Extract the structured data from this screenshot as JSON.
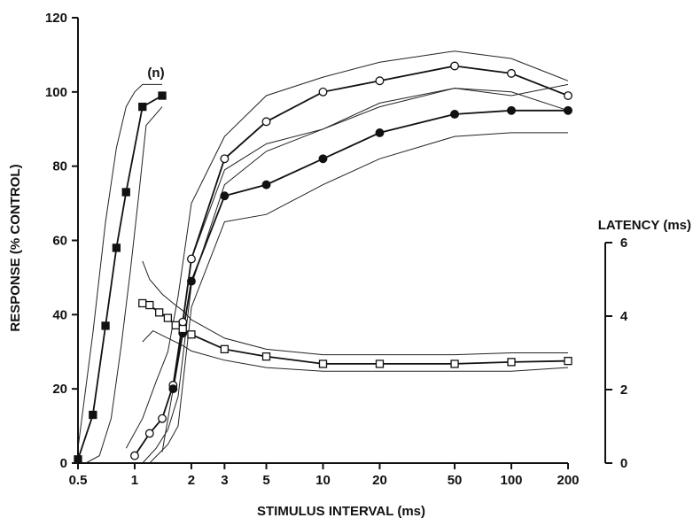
{
  "chart_data": {
    "type": "line",
    "xlabel": "STIMULUS INTERVAL (ms)",
    "ylabel": "RESPONSE (% CONTROL)",
    "y2label": "LATENCY (ms)",
    "x_scale": "log",
    "xlim": [
      0.5,
      200
    ],
    "ylim": [
      0,
      120
    ],
    "y2lim": [
      0,
      6
    ],
    "x_ticks": [
      0.5,
      1,
      2,
      3,
      5,
      10,
      20,
      50,
      100,
      200
    ],
    "x_tick_labels": [
      "0.5",
      "1",
      "2",
      "3",
      "5",
      "10",
      "20",
      "50",
      "100",
      "200"
    ],
    "y_ticks": [
      0,
      20,
      40,
      60,
      80,
      100,
      120
    ],
    "y_tick_labels": [
      "0",
      "20",
      "40",
      "60",
      "80",
      "100",
      "120"
    ],
    "y2_ticks": [
      0,
      2,
      4,
      6
    ],
    "y2_tick_labels": [
      "0",
      "2",
      "4",
      "6"
    ],
    "grid": false,
    "annotations": [
      {
        "text": "(n)",
        "x": 1.15,
        "y": 104
      }
    ],
    "series": [
      {
        "marker": "filled-square",
        "axis": "left",
        "x": [
          0.5,
          0.6,
          0.7,
          0.8,
          0.9,
          1.1,
          1.4
        ],
        "y": [
          1,
          13,
          37,
          58,
          73,
          96,
          99
        ],
        "band_upper_x": [
          0.5,
          0.6,
          0.7,
          0.8,
          0.9,
          1.0,
          1.1,
          1.4
        ],
        "band_upper": [
          4,
          35,
          65,
          85,
          96,
          100,
          102,
          102
        ],
        "band_lower_x": [
          0.55,
          0.65,
          0.75,
          0.85,
          0.95,
          1.05,
          1.15,
          1.4
        ],
        "band_lower": [
          0,
          2,
          12,
          32,
          52,
          72,
          91,
          96
        ]
      },
      {
        "marker": "open-circle",
        "axis": "left",
        "x": [
          1,
          1.2,
          1.4,
          1.6,
          1.8,
          2,
          3,
          5,
          10,
          20,
          50,
          100,
          200
        ],
        "y": [
          2,
          8,
          12,
          21,
          38,
          55,
          82,
          92,
          100,
          103,
          107,
          105,
          99
        ],
        "band_upper_x": [
          0.9,
          1.1,
          1.3,
          1.5,
          1.7,
          2.0,
          3,
          5,
          10,
          20,
          50,
          100,
          200
        ],
        "band_upper": [
          4,
          12,
          22,
          30,
          45,
          70,
          88,
          99,
          104,
          108,
          111,
          109,
          103
        ],
        "band_lower_x": [
          1.1,
          1.3,
          1.5,
          1.7,
          2.0,
          3,
          5,
          10,
          20,
          50,
          100,
          200
        ],
        "band_lower": [
          0,
          4,
          9,
          18,
          48,
          75,
          84,
          90,
          96,
          101,
          100,
          95
        ]
      },
      {
        "marker": "filled-circle",
        "axis": "left",
        "x": [
          1.6,
          1.8,
          2,
          3,
          5,
          10,
          20,
          50,
          100,
          200
        ],
        "y": [
          20,
          35,
          49,
          72,
          75,
          82,
          89,
          94,
          95,
          95
        ],
        "band_upper_x": [
          1.4,
          1.6,
          2.0,
          3,
          5,
          10,
          20,
          50,
          100,
          200
        ],
        "band_upper": [
          3,
          20,
          55,
          79,
          86,
          90,
          97,
          101,
          99,
          102
        ],
        "band_lower_x": [
          1.2,
          1.5,
          1.7,
          2.0,
          3,
          5,
          10,
          20,
          50,
          100,
          200
        ],
        "band_lower": [
          0,
          5,
          10,
          42,
          65,
          67,
          75,
          82,
          88,
          89,
          89
        ]
      },
      {
        "marker": "open-square",
        "axis": "right",
        "x": [
          1.1,
          1.2,
          1.35,
          1.5,
          1.65,
          1.8,
          2,
          3,
          5,
          10,
          20,
          50,
          100,
          200
        ],
        "y": [
          4.35,
          4.3,
          4.1,
          3.95,
          3.75,
          3.65,
          3.5,
          3.1,
          2.9,
          2.7,
          2.7,
          2.7,
          2.75,
          2.78
        ],
        "band_upper_x": [
          1.1,
          1.2,
          1.4,
          1.6,
          1.8,
          2,
          3,
          5,
          10,
          20,
          50,
          100,
          200
        ],
        "band_upper": [
          5.5,
          5.0,
          4.6,
          4.35,
          4.15,
          3.9,
          3.4,
          3.1,
          2.95,
          2.95,
          2.95,
          3.0,
          3.0
        ],
        "band_lower_x": [
          1.1,
          1.25,
          1.5,
          1.8,
          2,
          3,
          5,
          10,
          20,
          50,
          100,
          200
        ],
        "band_lower": [
          3.3,
          3.6,
          3.4,
          3.2,
          3.05,
          2.8,
          2.6,
          2.5,
          2.5,
          2.5,
          2.5,
          2.6
        ]
      }
    ]
  }
}
